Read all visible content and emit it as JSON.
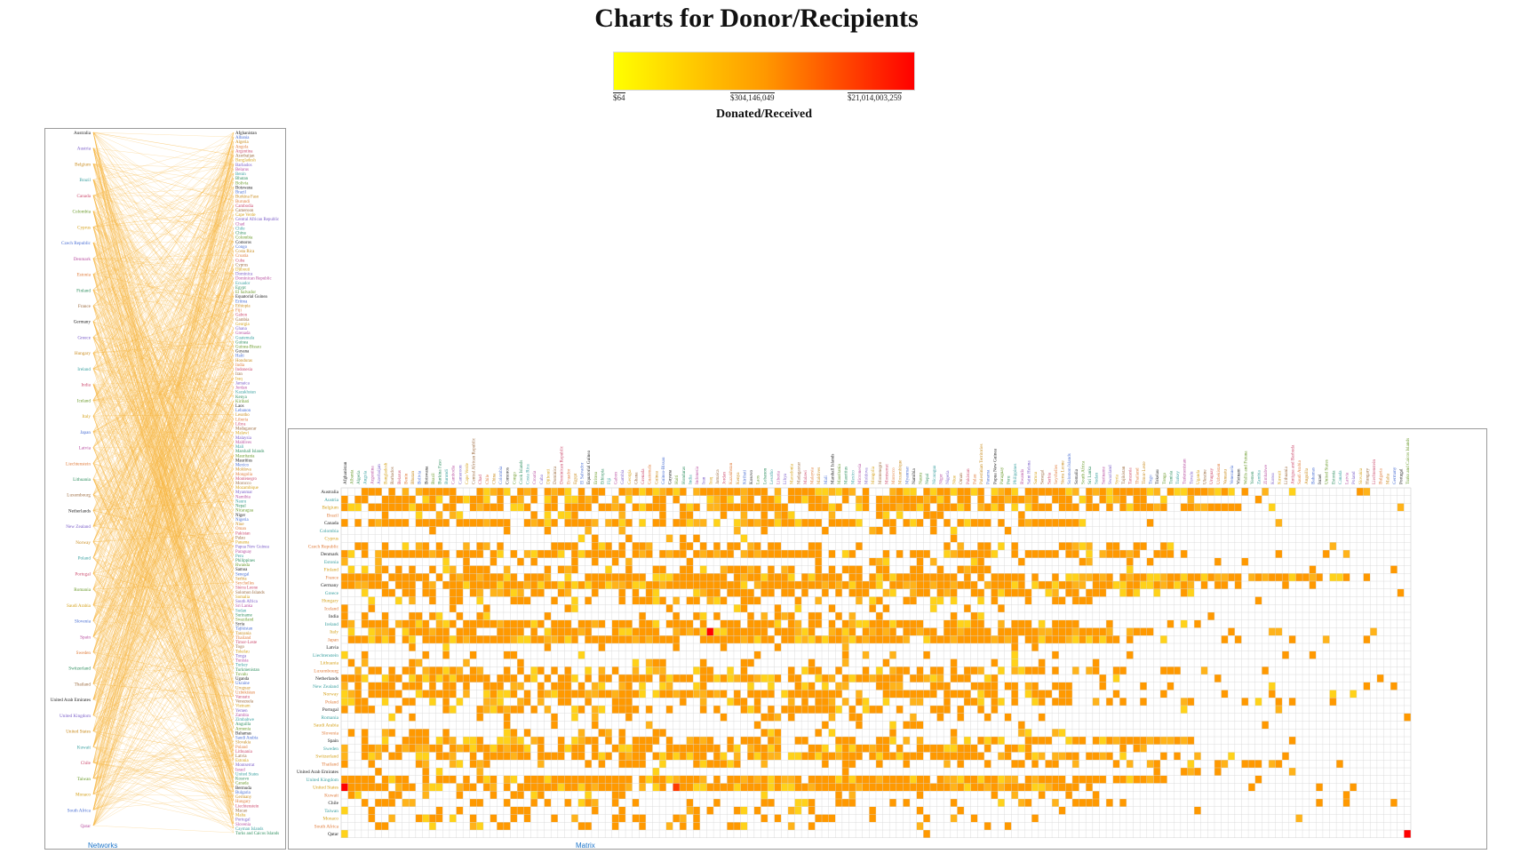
{
  "title": "Charts for Donor/Recipients",
  "legend": {
    "label": "Donated/Received",
    "min_label": "$64",
    "mid_label": "$304,146,049",
    "max_label": "$21,014,003,259",
    "colors": [
      "#ffff00",
      "#ff9900",
      "#ff0000"
    ]
  },
  "panels": {
    "network_label": "Networks",
    "matrix_label": "Matrix"
  },
  "chart_data": [
    {
      "type": "network",
      "title": "Networks",
      "donors": [
        "Australia",
        "Austria",
        "Belgium",
        "Brazil",
        "Canada",
        "Colombia",
        "Cyprus",
        "Czech Republic",
        "Denmark",
        "Estonia",
        "Finland",
        "France",
        "Germany",
        "Greece",
        "Hungary",
        "Ireland",
        "India",
        "Iceland",
        "Italy",
        "Japan",
        "Latvia",
        "Liechtenstein",
        "Lithuania",
        "Luxembourg",
        "Netherlands",
        "New Zealand",
        "Norway",
        "Poland",
        "Portugal",
        "Romania",
        "Saudi Arabia",
        "Slovenia",
        "Spain",
        "Sweden",
        "Switzerland",
        "Thailand",
        "United Arab Emirates",
        "United Kingdom",
        "United States",
        "Kuwait",
        "Chile",
        "Taiwan",
        "Monaco",
        "South Africa",
        "Qatar"
      ],
      "recipients": [
        "Afghanistan",
        "Albania",
        "Algeria",
        "Angola",
        "Argentina",
        "Azerbaijan",
        "Bangladesh",
        "Barbados",
        "Belarus",
        "Benin",
        "Bhutan",
        "Bolivia",
        "Botswana",
        "Brazil",
        "Burkina Faso",
        "Burundi",
        "Cambodia",
        "Cameroon",
        "Cape Verde",
        "Central African Republic",
        "Chad",
        "Chile",
        "China",
        "Colombia",
        "Comoros",
        "Congo",
        "Costa Rica",
        "Croatia",
        "Cuba",
        "Cyprus",
        "Djibouti",
        "Dominica",
        "Dominican Republic",
        "Ecuador",
        "Egypt",
        "El Salvador",
        "Equatorial Guinea",
        "Eritrea",
        "Ethiopia",
        "Fiji",
        "Gabon",
        "Gambia",
        "Georgia",
        "Ghana",
        "Grenada",
        "Guatemala",
        "Guinea",
        "Guinea-Bissau",
        "Guyana",
        "Haiti",
        "Honduras",
        "India",
        "Indonesia",
        "Iran",
        "Iraq",
        "Jamaica",
        "Jordan",
        "Kazakhstan",
        "Kenya",
        "Kiribati",
        "Laos",
        "Lebanon",
        "Lesotho",
        "Liberia",
        "Libya",
        "Madagascar",
        "Malawi",
        "Malaysia",
        "Maldives",
        "Mali",
        "Marshall Islands",
        "Mauritania",
        "Mauritius",
        "Mexico",
        "Moldova",
        "Mongolia",
        "Montenegro",
        "Morocco",
        "Mozambique",
        "Myanmar",
        "Namibia",
        "Nauru",
        "Nepal",
        "Nicaragua",
        "Niger",
        "Nigeria",
        "Niue",
        "Oman",
        "Pakistan",
        "Palau",
        "Panama",
        "Papua New Guinea",
        "Paraguay",
        "Peru",
        "Philippines",
        "Rwanda",
        "Samoa",
        "Senegal",
        "Serbia",
        "Seychelles",
        "Sierra Leone",
        "Solomon Islands",
        "Somalia",
        "South Africa",
        "Sri Lanka",
        "Sudan",
        "Suriname",
        "Swaziland",
        "Syria",
        "Tajikistan",
        "Tanzania",
        "Thailand",
        "Timor-Leste",
        "Togo",
        "Tokelau",
        "Tonga",
        "Tunisia",
        "Turkey",
        "Turkmenistan",
        "Tuvalu",
        "Uganda",
        "Ukraine",
        "Uruguay",
        "Uzbekistan",
        "Vanuatu",
        "Venezuela",
        "Vietnam",
        "Yemen",
        "Zambia",
        "Zimbabwe",
        "Anguilla",
        "Armenia",
        "Bahamas",
        "Saudi Arabia",
        "Slovakia",
        "Poland",
        "Lithuania",
        "Latvia",
        "Estonia",
        "Montserrat",
        "Israel",
        "United States",
        "Kosovo",
        "Canada",
        "Bermuda",
        "Bulgaria",
        "Germany",
        "Hungary",
        "Liechtenstein",
        "Macao",
        "Malta",
        "Portugal",
        "Slovenia",
        "Cayman Islands",
        "Turks and Caicos Islands"
      ]
    },
    {
      "type": "heatmap",
      "title": "Matrix",
      "rows": [
        "Australia",
        "Austria",
        "Belgium",
        "Brazil",
        "Canada",
        "Colombia",
        "Cyprus",
        "Czech Republic",
        "Denmark",
        "Estonia",
        "Finland",
        "France",
        "Germany",
        "Greece",
        "Hungary",
        "Iceland",
        "India",
        "Ireland",
        "Italy",
        "Japan",
        "Latvia",
        "Liechtenstein",
        "Lithuania",
        "Luxembourg",
        "Netherlands",
        "New Zealand",
        "Norway",
        "Poland",
        "Portugal",
        "Romania",
        "Saudi Arabia",
        "Slovenia",
        "Spain",
        "Sweden",
        "Switzerland",
        "Thailand",
        "United Arab Emirates",
        "United Kingdom",
        "United States",
        "Kuwait",
        "Chile",
        "Taiwan",
        "Monaco",
        "South Africa",
        "Qatar"
      ],
      "columns": [
        "Afghanistan",
        "Albania",
        "Algeria",
        "Angola",
        "Argentina",
        "Azerbaijan",
        "Bangladesh",
        "Barbados",
        "Belarus",
        "Benin",
        "Bhutan",
        "Bolivia",
        "Botswana",
        "Brazil",
        "Burkina Faso",
        "Burundi",
        "Cambodia",
        "Cameroon",
        "Cape Verde",
        "Central African Republic",
        "Chad",
        "Chile",
        "China",
        "Colombia",
        "Comoros",
        "Congo",
        "Cook Islands",
        "Costa Rica",
        "Croatia",
        "Cuba",
        "Djibouti",
        "Dominica",
        "Dominican Republic",
        "Ecuador",
        "Egypt",
        "El Salvador",
        "Equatorial Guinea",
        "Eritrea",
        "Ethiopia",
        "Fiji",
        "Gabon",
        "Gambia",
        "Georgia",
        "Ghana",
        "Grenada",
        "Guatemala",
        "Guinea",
        "Guinea-Bissau",
        "Guyana",
        "Haiti",
        "Honduras",
        "India",
        "Indonesia",
        "Iran",
        "Iraq",
        "Jamaica",
        "Jordan",
        "Kazakhstan",
        "Kenya",
        "Kiribati",
        "Kosovo",
        "Laos",
        "Lebanon",
        "Lesotho",
        "Liberia",
        "Libya",
        "Macedonia",
        "Madagascar",
        "Malawi",
        "Malaysia",
        "Maldives",
        "Mali",
        "Marshall Islands",
        "Mauritania",
        "Mauritius",
        "Mexico",
        "Micronesia",
        "Moldova",
        "Mongolia",
        "Montenegro",
        "Montserrat",
        "Morocco",
        "Mozambique",
        "Myanmar",
        "Namibia",
        "Nauru",
        "Nepal",
        "Nicaragua",
        "Niger",
        "Nigeria",
        "Niue",
        "Oman",
        "Pakistan",
        "Palau",
        "Palestinian Territories",
        "Panama",
        "Papua New Guinea",
        "Paraguay",
        "Peru",
        "Philippines",
        "Rwanda",
        "Saint Helena",
        "Samoa",
        "Senegal",
        "Serbia",
        "Seychelles",
        "Sierra Leone",
        "Solomon Islands",
        "Somalia",
        "South Africa",
        "Sri Lanka",
        "Sudan",
        "Suriname",
        "Swaziland",
        "Syria",
        "Tajikistan",
        "Tanzania",
        "Thailand",
        "Timor-Leste",
        "Togo",
        "Tokelau",
        "Tonga",
        "Tunisia",
        "Turkey",
        "Turkmenistan",
        "Tuvalu",
        "Uganda",
        "Ukraine",
        "Uruguay",
        "Uzbekistan",
        "Vanuatu",
        "Venezuela",
        "Vietnam",
        "Wallis and Futuna",
        "Yemen",
        "Zambia",
        "Zimbabwe",
        "Korea",
        "Kuwait",
        "Lithuania",
        "Antigua and Barbuda",
        "Saudi Arabia",
        "Anguilla",
        "Bahamas",
        "Israel",
        "United States",
        "Estonia",
        "Canada",
        "Latvia",
        "Poland",
        "Slovakia",
        "Hungary",
        "Liechtenstein",
        "Bulgaria",
        "Malta",
        "Germany",
        "Portugal",
        "Turks and Caicos Islands"
      ],
      "value_range": [
        64,
        21014003259
      ],
      "fill_density_per_row": [
        0.82,
        0.72,
        0.78,
        0.3,
        0.8,
        0.2,
        0.1,
        0.45,
        0.8,
        0.25,
        0.5,
        0.85,
        0.9,
        0.6,
        0.4,
        0.2,
        0.35,
        0.7,
        0.8,
        0.9,
        0.1,
        0.15,
        0.15,
        0.45,
        0.8,
        0.55,
        0.75,
        0.45,
        0.5,
        0.2,
        0.2,
        0.25,
        0.65,
        0.75,
        0.78,
        0.35,
        0.1,
        0.85,
        0.9,
        0.2,
        0.3,
        0.2,
        0.25,
        0.15,
        0.02
      ],
      "highlighted_cells": [
        {
          "row": "Italy",
          "column": "Iraq",
          "level": "max"
        },
        {
          "row": "United States",
          "column": "Afghanistan",
          "level": "max"
        },
        {
          "row": "United States",
          "column": "Haiti",
          "level": "high"
        },
        {
          "row": "Qatar",
          "column": "Turks and Caicos Islands",
          "level": "max"
        }
      ]
    }
  ]
}
